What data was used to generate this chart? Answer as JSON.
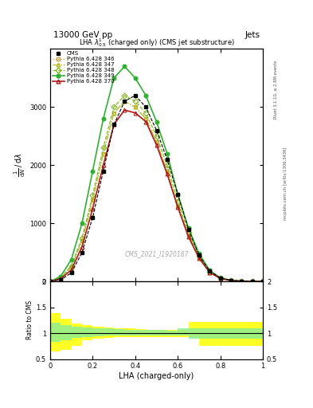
{
  "title_top": "13000 GeV pp",
  "title_right": "Jets",
  "plot_title": "LHA $\\lambda^{1}_{0.5}$ (charged only) (CMS jet substructure)",
  "xlabel": "LHA (charged-only)",
  "ylabel_main": "1 / mathrm{d}N / mathrm{d}lambda",
  "ylabel_ratio": "Ratio to CMS",
  "watermark": "CMS_2021_I1920187",
  "rivet_label": "Rivet 3.1.10, ≥ 2.8M events",
  "mcplots_label": "mcplots.cern.ch [arXiv:1306.3436]",
  "x": [
    0.0,
    0.05,
    0.1,
    0.15,
    0.2,
    0.25,
    0.3,
    0.35,
    0.4,
    0.45,
    0.5,
    0.55,
    0.6,
    0.65,
    0.7,
    0.75,
    0.8,
    0.85,
    0.9,
    0.95,
    1.0
  ],
  "cms_y": [
    0.0,
    30,
    150,
    500,
    1100,
    1900,
    2700,
    3100,
    3200,
    3000,
    2600,
    2100,
    1500,
    900,
    450,
    180,
    60,
    20,
    8,
    2,
    0
  ],
  "p346_y": [
    0.0,
    60,
    250,
    700,
    1400,
    2200,
    2900,
    3100,
    3000,
    2800,
    2400,
    1900,
    1300,
    800,
    420,
    160,
    55,
    18,
    6,
    1,
    0
  ],
  "p347_y": [
    0.0,
    60,
    250,
    700,
    1400,
    2200,
    2900,
    3100,
    3000,
    2800,
    2400,
    1900,
    1300,
    800,
    420,
    160,
    55,
    18,
    6,
    1,
    0
  ],
  "p348_y": [
    0.0,
    65,
    270,
    750,
    1480,
    2300,
    3000,
    3200,
    3100,
    2900,
    2500,
    2000,
    1380,
    840,
    440,
    170,
    58,
    19,
    7,
    2,
    0
  ],
  "p349_y": [
    0.0,
    90,
    380,
    1000,
    1900,
    2800,
    3500,
    3700,
    3500,
    3200,
    2750,
    2200,
    1500,
    920,
    480,
    190,
    65,
    22,
    8,
    2,
    0
  ],
  "p370_y": [
    0.0,
    50,
    200,
    600,
    1250,
    2000,
    2700,
    2950,
    2900,
    2750,
    2350,
    1850,
    1280,
    770,
    400,
    155,
    52,
    17,
    6,
    1,
    0
  ],
  "cms_color": "#000000",
  "p346_color": "#c8a040",
  "p347_color": "#b8b820",
  "p348_color": "#80b820",
  "p349_color": "#30b030",
  "p370_color": "#b01818",
  "ylim_main_max": 4000,
  "ylim_ratio_lo": 0.5,
  "ylim_ratio_hi": 2.0,
  "yellow_band_edges": [
    0.0,
    0.05,
    0.1,
    0.15,
    0.2,
    0.25,
    0.3,
    0.35,
    0.4,
    0.45,
    0.5,
    0.55,
    0.6,
    0.65,
    0.7,
    0.75,
    0.8,
    0.85,
    0.9,
    0.95,
    1.0
  ],
  "yellow_low": [
    0.65,
    0.68,
    0.75,
    0.87,
    0.9,
    0.91,
    0.92,
    0.92,
    0.92,
    0.93,
    0.93,
    0.93,
    0.93,
    0.93,
    0.76,
    0.76,
    0.76,
    0.76,
    0.76,
    0.76
  ],
  "yellow_high": [
    1.38,
    1.28,
    1.18,
    1.15,
    1.13,
    1.11,
    1.1,
    1.09,
    1.08,
    1.07,
    1.07,
    1.06,
    1.06,
    1.22,
    1.22,
    1.22,
    1.22,
    1.22,
    1.22,
    1.22
  ],
  "green_low": [
    0.83,
    0.87,
    0.91,
    0.93,
    0.94,
    0.95,
    0.95,
    0.95,
    0.96,
    0.96,
    0.96,
    0.96,
    0.96,
    0.9,
    0.9,
    0.9,
    0.9,
    0.9,
    0.9,
    0.9
  ],
  "green_high": [
    1.2,
    1.16,
    1.13,
    1.11,
    1.1,
    1.09,
    1.08,
    1.07,
    1.07,
    1.06,
    1.06,
    1.05,
    1.1,
    1.1,
    1.1,
    1.1,
    1.1,
    1.1,
    1.1,
    1.1
  ]
}
